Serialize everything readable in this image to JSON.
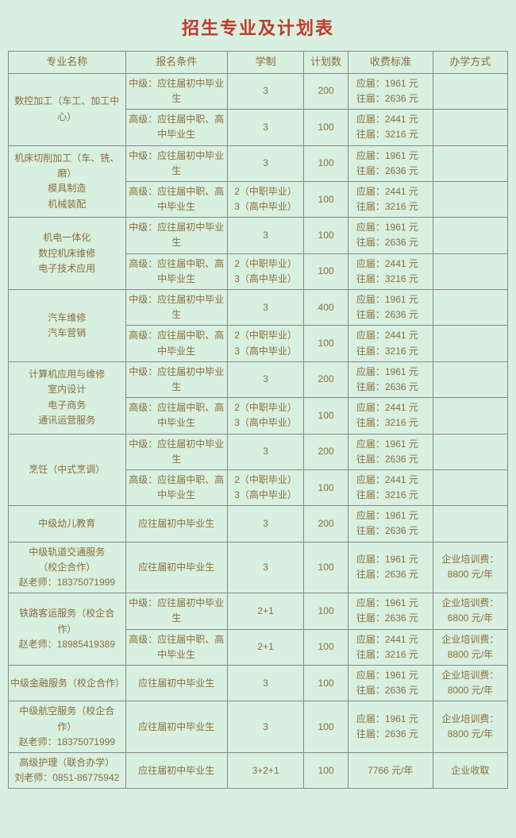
{
  "title": "招生专业及计划表",
  "headers": {
    "major": "专业名称",
    "condition": "报名条件",
    "duration": "学制",
    "count": "计划数",
    "fee": "收费标准",
    "mode": "办学方式"
  },
  "labels": {
    "mid": "中级：应往届初中毕业生",
    "high": "高级：应往届中职、高中毕业生",
    "init": "应往届初中毕业生",
    "dur3": "3",
    "dur23": "2（中职毕业）\n3（高中毕业）",
    "dur21": "2+1",
    "dur321": "3+2+1",
    "fee_mid": "应届：1961 元\n往届：2636 元",
    "fee_high": "应届：2441 元\n往届：3216 元",
    "fee_7766": "7766 元/年",
    "mode_8800": "企业培训费：8800 元/年",
    "mode_6800": "企业培训费：6800 元/年",
    "mode_8000": "企业培训费：8000 元/年",
    "mode_qy": "企业收取"
  },
  "majors": {
    "m1": "数控加工（车工、加工中心）",
    "m2": "机床切削加工（车、铣、磨）\n模具制造\n机械装配",
    "m3": "机电一体化\n数控机床维修\n电子技术应用",
    "m4": "汽车维修\n汽车营销",
    "m5": "计算机应用与维修\n室内设计\n电子商务\n通讯运营服务",
    "m6": "烹饪（中式烹调）",
    "m7": "中级幼儿教育",
    "m8": "中级轨道交通服务\n（校企合作）\n赵老师：18375071999",
    "m9": "铁路客运服务（校企合作）\n赵老师：18985419389",
    "m10": "中级金融服务（校企合作）",
    "m11": "中级航空服务（校企合作）\n赵老师：18375071999",
    "m12": "高级护理（联合办学）\n刘老师：0851-86775942"
  },
  "counts": {
    "c200": "200",
    "c100": "100",
    "c400": "400"
  }
}
